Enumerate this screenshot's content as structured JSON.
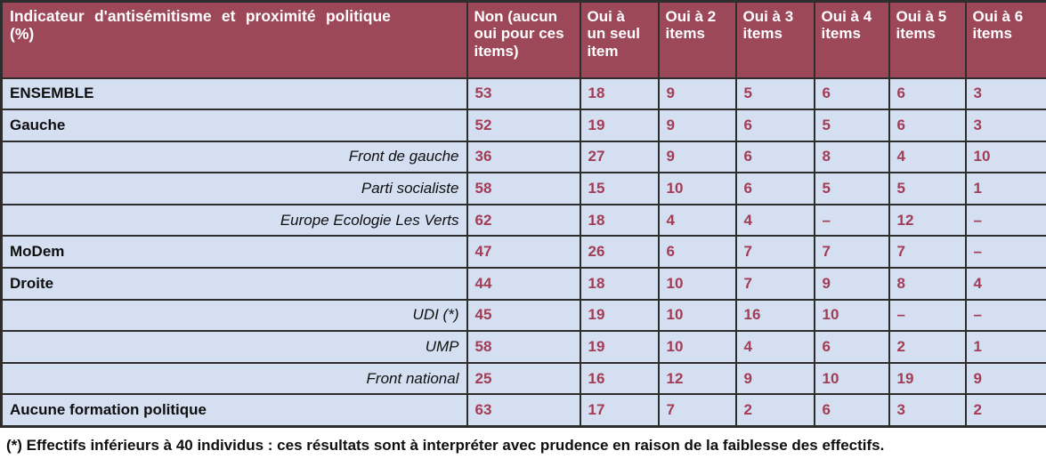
{
  "table": {
    "header": {
      "label_col": "Indicateur d'antisémitisme et proximité politique\n(%)",
      "columns": [
        "Non (aucun\noui pour ces\nitems)",
        "Oui à\nun seul\nitem",
        "Oui à 2\nitems",
        "Oui à 3\nitems",
        "Oui à 4\nitems",
        "Oui à 5\nitems",
        "Oui à 6\nitems"
      ]
    },
    "rows": [
      {
        "label": "ENSEMBLE",
        "style": "main",
        "values": [
          "53",
          "18",
          "9",
          "5",
          "6",
          "6",
          "3"
        ]
      },
      {
        "label": "Gauche",
        "style": "main",
        "values": [
          "52",
          "19",
          "9",
          "6",
          "5",
          "6",
          "3"
        ]
      },
      {
        "label": "Front de gauche",
        "style": "sub",
        "values": [
          "36",
          "27",
          "9",
          "6",
          "8",
          "4",
          "10"
        ]
      },
      {
        "label": "Parti socialiste",
        "style": "sub",
        "values": [
          "58",
          "15",
          "10",
          "6",
          "5",
          "5",
          "1"
        ]
      },
      {
        "label": "Europe Ecologie Les Verts",
        "style": "sub",
        "values": [
          "62",
          "18",
          "4",
          "4",
          "–",
          "12",
          "–"
        ]
      },
      {
        "label": "MoDem",
        "style": "main",
        "values": [
          "47",
          "26",
          "6",
          "7",
          "7",
          "7",
          "–"
        ]
      },
      {
        "label": "Droite",
        "style": "main",
        "values": [
          "44",
          "18",
          "10",
          "7",
          "9",
          "8",
          "4"
        ]
      },
      {
        "label": "UDI (*)",
        "style": "sub",
        "values": [
          "45",
          "19",
          "10",
          "16",
          "10",
          "–",
          "–"
        ]
      },
      {
        "label": "UMP",
        "style": "sub",
        "values": [
          "58",
          "19",
          "10",
          "4",
          "6",
          "2",
          "1"
        ]
      },
      {
        "label": "Front national",
        "style": "sub",
        "values": [
          "25",
          "16",
          "12",
          "9",
          "10",
          "19",
          "9"
        ]
      },
      {
        "label": "Aucune formation politique",
        "style": "main",
        "values": [
          "63",
          "17",
          "7",
          "2",
          "6",
          "3",
          "2"
        ]
      }
    ]
  },
  "footnote": "(*) Effectifs inférieurs à 40 individus : ces résultats sont à interpréter avec prudence en raison de la faiblesse des effectifs.",
  "colors": {
    "header_bg": "#9C4858",
    "row_bg": "#D5DFF2",
    "value_text": "#A23D55",
    "border": "#2D2D2D",
    "label_text": "#0F0F0F"
  }
}
